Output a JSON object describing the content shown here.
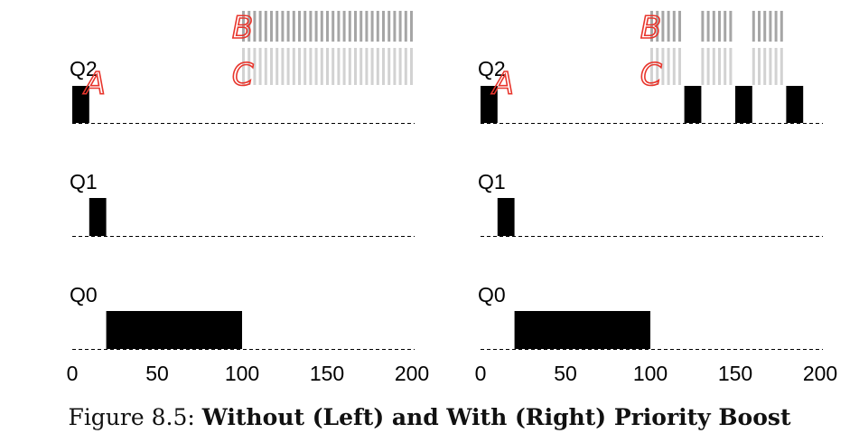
{
  "chart_data": [
    {
      "type": "timeline",
      "panel": "left",
      "queues": [
        "Q2",
        "Q1",
        "Q0"
      ],
      "x_ticks": [
        "0",
        "50",
        "100",
        "150",
        "200"
      ],
      "xlim": [
        0,
        200
      ],
      "annotations": [
        "A",
        "B",
        "C"
      ],
      "job_A": [
        {
          "queue": "Q2",
          "start": 0,
          "end": 10
        },
        {
          "queue": "Q1",
          "start": 10,
          "end": 20
        },
        {
          "queue": "Q0",
          "start": 20,
          "end": 100
        }
      ],
      "job_B": [
        {
          "queue": "Q2",
          "start": 100,
          "end": 200
        }
      ],
      "job_C": [
        {
          "queue": "Q2",
          "start": 100,
          "end": 200
        }
      ]
    },
    {
      "type": "timeline",
      "panel": "right",
      "queues": [
        "Q2",
        "Q1",
        "Q0"
      ],
      "x_ticks": [
        "0",
        "50",
        "100",
        "150",
        "200"
      ],
      "xlim": [
        0,
        200
      ],
      "annotations": [
        "A",
        "B",
        "C"
      ],
      "job_A": [
        {
          "queue": "Q2",
          "start": 0,
          "end": 10
        },
        {
          "queue": "Q1",
          "start": 10,
          "end": 20
        },
        {
          "queue": "Q0",
          "start": 20,
          "end": 100
        },
        {
          "queue": "Q2",
          "start": 120,
          "end": 130
        },
        {
          "queue": "Q2",
          "start": 150,
          "end": 160
        },
        {
          "queue": "Q2",
          "start": 180,
          "end": 190
        }
      ],
      "job_B": [
        {
          "queue": "Q2",
          "start": 100,
          "end": 120
        },
        {
          "queue": "Q2",
          "start": 130,
          "end": 150
        },
        {
          "queue": "Q2",
          "start": 160,
          "end": 180
        }
      ],
      "job_C": [
        {
          "queue": "Q2",
          "start": 100,
          "end": 120
        },
        {
          "queue": "Q2",
          "start": 130,
          "end": 150
        },
        {
          "queue": "Q2",
          "start": 160,
          "end": 180
        }
      ]
    }
  ],
  "colors": {
    "job_A": "#000000",
    "job_B": "#a6a6a6",
    "job_C": "#d2d2d2",
    "handwriting": "#e8352c"
  },
  "caption": {
    "label": "Figure 8.5:",
    "title": "Without (Left) and With (Right) Priority Boost"
  }
}
